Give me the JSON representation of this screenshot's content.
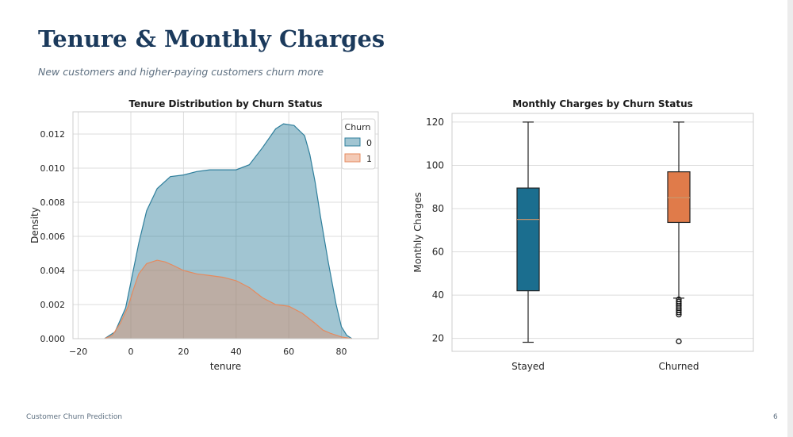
{
  "slide": {
    "title": "Tenure & Monthly Charges",
    "subtitle": "New customers and higher-paying customers churn more",
    "footer": "Customer Churn Prediction",
    "page_number": "6"
  },
  "colors": {
    "title": "#1b3a5c",
    "kde_0": "#2f7f9c",
    "kde_1": "#e58a5e",
    "box_stayed": "#1b6e8f",
    "box_churned": "#e07b4a"
  },
  "chart_data": [
    {
      "type": "area",
      "title": "Tenure Distribution by Churn Status",
      "xlabel": "tenure",
      "ylabel": "Density",
      "xlim": [
        -22,
        94
      ],
      "ylim": [
        0,
        0.0133
      ],
      "x_ticks": [
        -20,
        0,
        20,
        40,
        60,
        80
      ],
      "x_tick_labels": [
        "−20",
        "0",
        "20",
        "40",
        "60",
        "80"
      ],
      "y_ticks": [
        0,
        0.002,
        0.004,
        0.006,
        0.008,
        0.01,
        0.012
      ],
      "y_tick_labels": [
        "0.000",
        "0.002",
        "0.004",
        "0.006",
        "0.008",
        "0.010",
        "0.012"
      ],
      "grid": true,
      "legend": {
        "title": "Churn",
        "placement": "top-right"
      },
      "series": [
        {
          "name": "0",
          "x": [
            -10,
            -6,
            -2,
            0,
            3,
            6,
            10,
            15,
            20,
            25,
            30,
            35,
            40,
            45,
            50,
            55,
            58,
            62,
            66,
            68,
            70,
            72,
            75,
            78,
            80,
            82,
            84
          ],
          "y": [
            0,
            0.0004,
            0.0018,
            0.0033,
            0.0056,
            0.0075,
            0.0088,
            0.0095,
            0.0096,
            0.0098,
            0.0099,
            0.0099,
            0.0099,
            0.0102,
            0.0112,
            0.0123,
            0.0126,
            0.0125,
            0.0119,
            0.0108,
            0.0092,
            0.0072,
            0.0045,
            0.002,
            0.0007,
            0.0002,
            0
          ]
        },
        {
          "name": "1",
          "x": [
            -10,
            -7,
            -4,
            -1,
            1,
            3,
            6,
            10,
            13,
            16,
            20,
            25,
            30,
            35,
            40,
            45,
            50,
            55,
            60,
            65,
            70,
            73,
            76,
            80,
            84
          ],
          "y": [
            0,
            0.0002,
            0.0009,
            0.0019,
            0.0029,
            0.0038,
            0.0044,
            0.0046,
            0.0045,
            0.0043,
            0.004,
            0.0038,
            0.0037,
            0.0036,
            0.0034,
            0.003,
            0.0024,
            0.002,
            0.0019,
            0.0015,
            0.0009,
            0.0005,
            0.0003,
            0.0001,
            0
          ]
        }
      ]
    },
    {
      "type": "box",
      "title": "Monthly Charges by Churn Status",
      "xlabel": "",
      "ylabel": "Monthly Charges",
      "ylim": [
        14,
        124
      ],
      "y_ticks": [
        20,
        40,
        60,
        80,
        100,
        120
      ],
      "grid": true,
      "categories": [
        "Stayed",
        "Churned"
      ],
      "boxes": [
        {
          "name": "Stayed",
          "whisker_low": 18.2,
          "q1": 42,
          "median": 75,
          "q3": 89.5,
          "whisker_high": 120,
          "outliers": []
        },
        {
          "name": "Churned",
          "whisker_low": 38.6,
          "q1": 73.6,
          "median": 85,
          "q3": 97,
          "whisker_high": 120,
          "outliers": [
            18.6,
            31,
            32,
            33,
            34,
            35,
            36,
            37,
            38
          ]
        }
      ]
    }
  ]
}
